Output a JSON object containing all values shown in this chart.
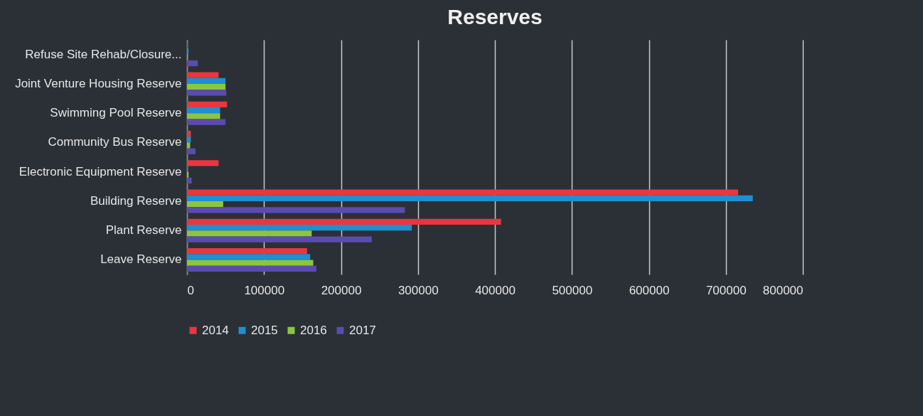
{
  "chart_data": {
    "type": "bar",
    "orientation": "horizontal",
    "title": "Reserves",
    "categories": [
      "Refuse Site Rehab/Closure...",
      "Joint Venture Housing Reserve",
      "Swimming Pool Reserve",
      "Community Bus Reserve",
      "Electronic Equipment Reserve",
      "Building Reserve",
      "Plant Reserve",
      "Leave Reserve"
    ],
    "series": [
      {
        "name": "2014",
        "color": "#e8373e",
        "values": [
          1000,
          41000,
          52000,
          5000,
          41000,
          716000,
          408000,
          156000
        ]
      },
      {
        "name": "2015",
        "color": "#1e8fd0",
        "values": [
          2000,
          50000,
          43000,
          5000,
          1000,
          735000,
          292000,
          160000
        ]
      },
      {
        "name": "2016",
        "color": "#8cc63f",
        "values": [
          1000,
          50000,
          43000,
          4000,
          2000,
          47000,
          162000,
          164000
        ]
      },
      {
        "name": "2017",
        "color": "#5b4bb0",
        "values": [
          14000,
          51000,
          50000,
          11000,
          6000,
          283000,
          240000,
          168000
        ]
      }
    ],
    "xlim": [
      0,
      800000
    ],
    "xticks": [
      0,
      100000,
      200000,
      300000,
      400000,
      500000,
      600000,
      700000,
      800000
    ],
    "grid": "x",
    "legend": "bottom"
  }
}
